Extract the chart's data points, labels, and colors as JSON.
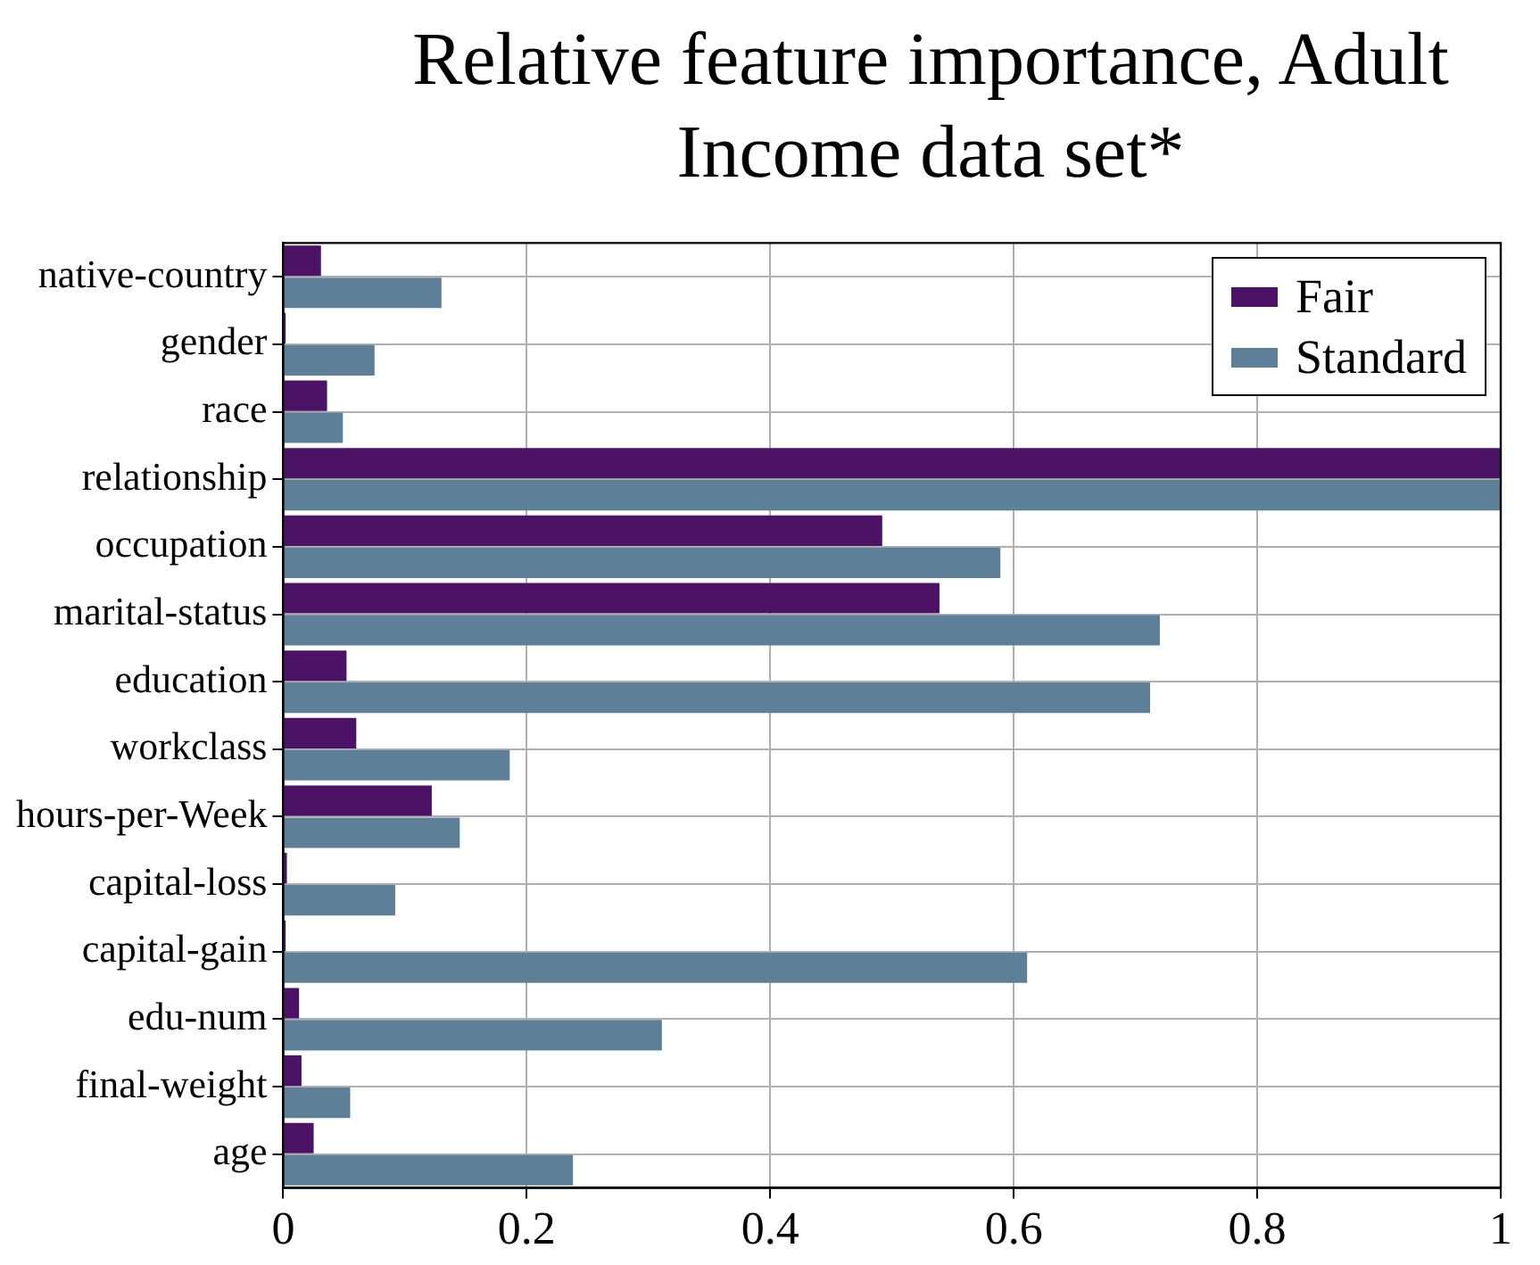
{
  "chart_data": {
    "type": "bar",
    "orientation": "horizontal",
    "title": "Relative feature importance, Adult Income data set*",
    "categories": [
      "native-country",
      "gender",
      "race",
      "relationship",
      "occupation",
      "marital-status",
      "education",
      "workclass",
      "hours-per-Week",
      "capital-loss",
      "capital-gain",
      "edu-num",
      "final-weight",
      "age"
    ],
    "series": [
      {
        "name": "Fair",
        "color": "#4b1266",
        "values": [
          0.031,
          0.002,
          0.036,
          1,
          0.492,
          0.539,
          0.052,
          0.06,
          0.122,
          0.003,
          0.002,
          0.013,
          0.015,
          0.025
        ]
      },
      {
        "name": "Standard",
        "color": "#5e7f98",
        "values": [
          0.13,
          0.075,
          0.049,
          1,
          0.589,
          0.72,
          0.712,
          0.186,
          0.145,
          0.092,
          0.611,
          0.311,
          0.055,
          0.238
        ]
      }
    ],
    "xlim": [
      0,
      1
    ],
    "xticks": [
      0,
      0.2,
      0.4,
      0.6,
      0.8,
      1
    ],
    "grid": true,
    "legend": "top right"
  }
}
